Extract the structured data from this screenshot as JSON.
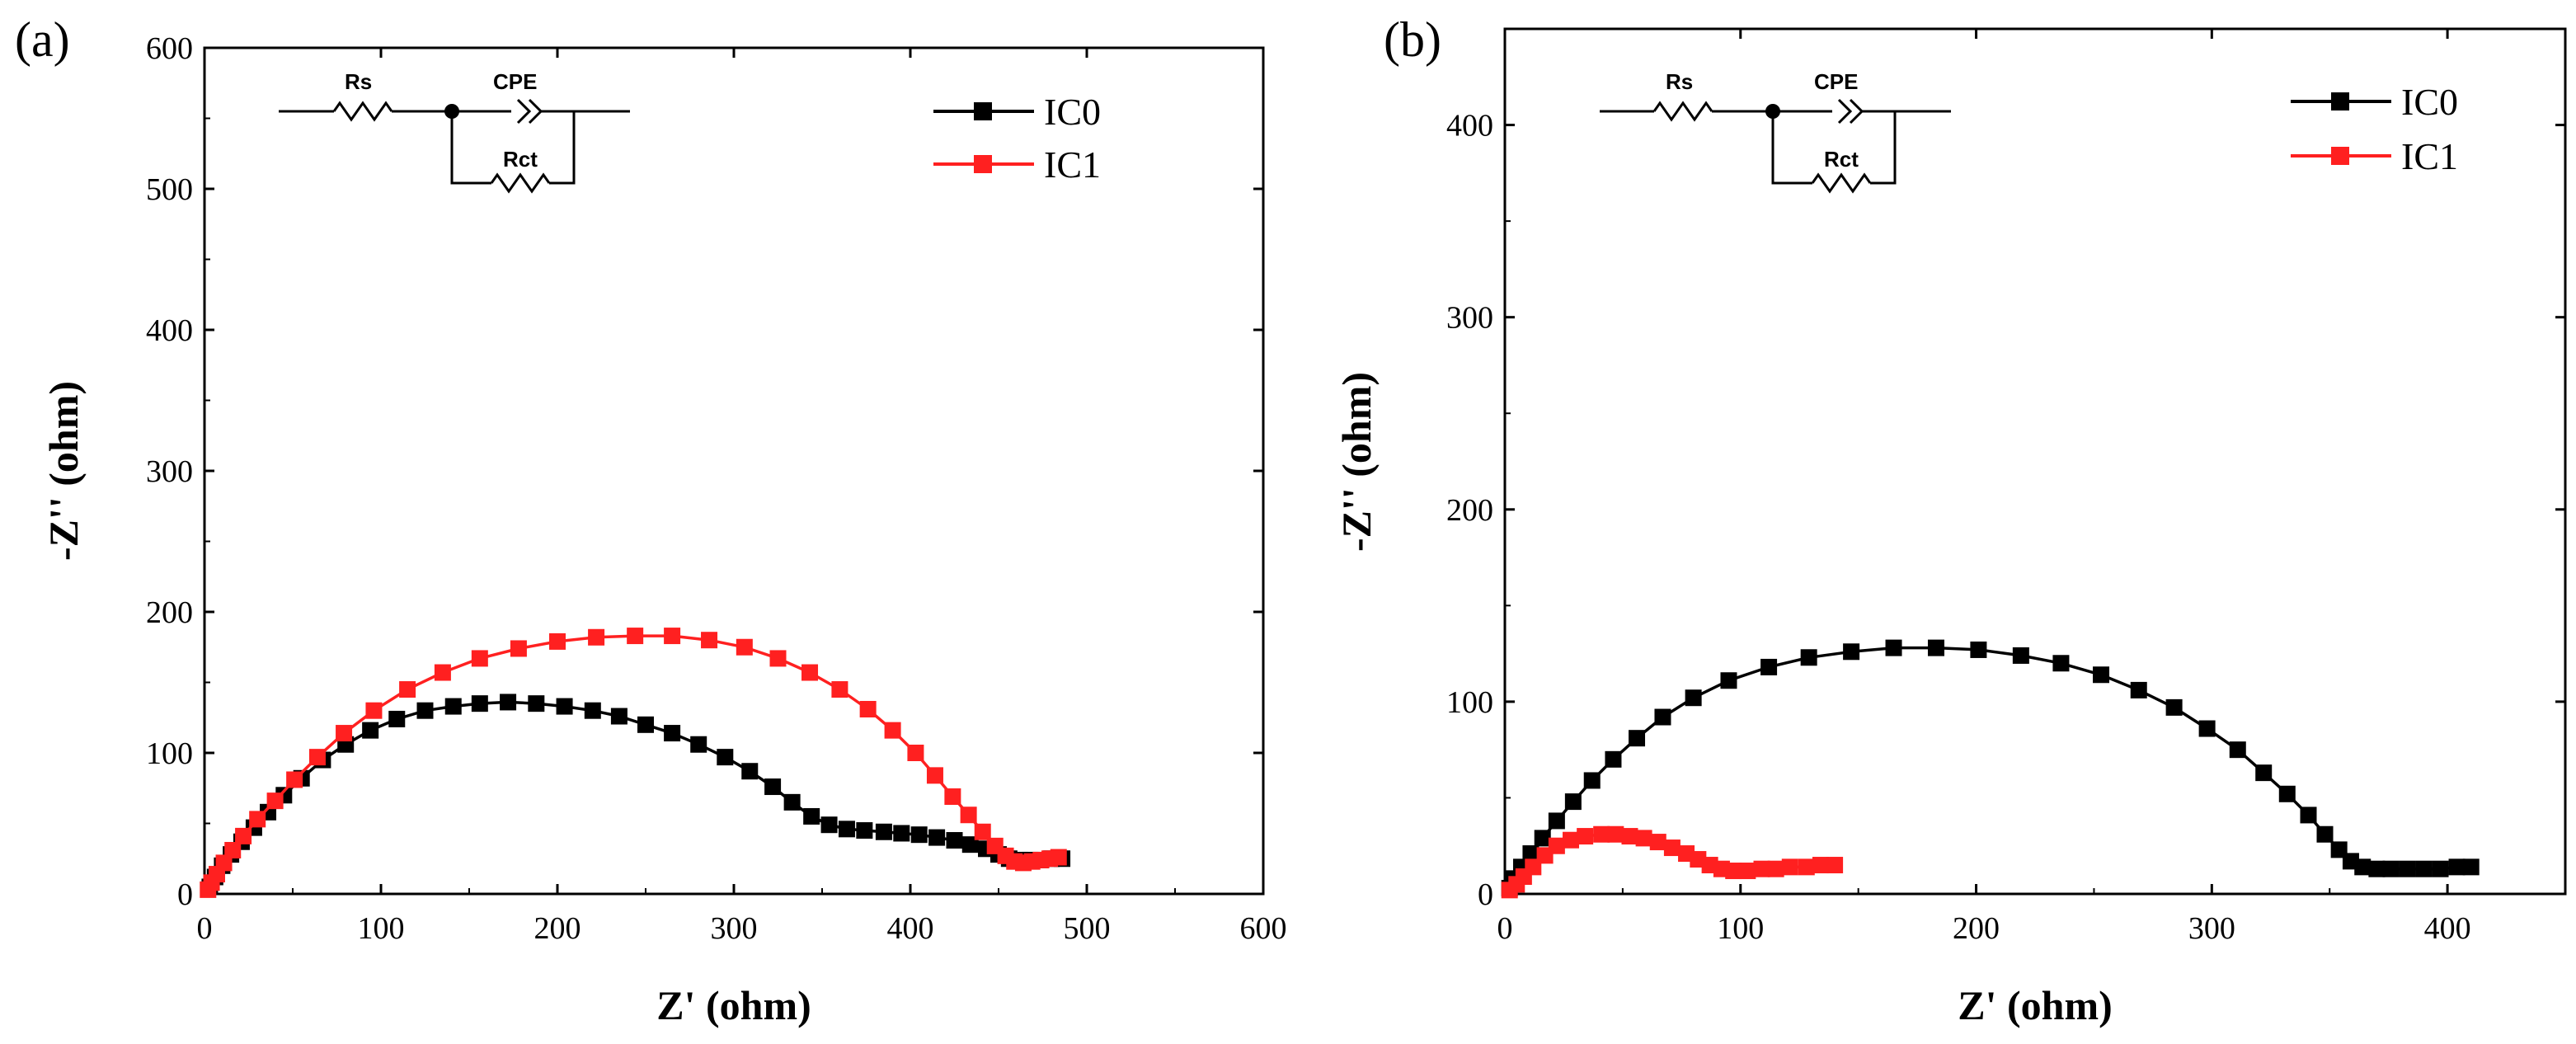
{
  "chart_data": [
    {
      "type": "scatter",
      "panel_label": "(a)",
      "title": "",
      "xlabel": "Z' (ohm)",
      "ylabel": "-Z'' (ohm)",
      "xlim": [
        0,
        600
      ],
      "ylim": [
        0,
        600
      ],
      "xticks": [
        "0",
        "100",
        "200",
        "300",
        "400",
        "500",
        "600"
      ],
      "yticks": [
        "0",
        "100",
        "200",
        "300",
        "400",
        "500",
        "600"
      ],
      "grid": false,
      "legend_position": "top-right",
      "circuit_labels": {
        "rs": "Rs",
        "cpe": "CPE",
        "rct": "Rct"
      },
      "series": [
        {
          "name": "IC0",
          "color": "#000000",
          "points": [
            [
              3,
              5
            ],
            [
              6,
              12
            ],
            [
              10,
              20
            ],
            [
              15,
              28
            ],
            [
              21,
              37
            ],
            [
              28,
              47
            ],
            [
              36,
              58
            ],
            [
              45,
              70
            ],
            [
              55,
              82
            ],
            [
              67,
              95
            ],
            [
              80,
              106
            ],
            [
              94,
              116
            ],
            [
              109,
              124
            ],
            [
              125,
              130
            ],
            [
              141,
              133
            ],
            [
              156,
              135
            ],
            [
              172,
              136
            ],
            [
              188,
              135
            ],
            [
              204,
              133
            ],
            [
              220,
              130
            ],
            [
              235,
              126
            ],
            [
              250,
              120
            ],
            [
              265,
              114
            ],
            [
              280,
              106
            ],
            [
              295,
              97
            ],
            [
              309,
              87
            ],
            [
              322,
              76
            ],
            [
              333,
              65
            ],
            [
              344,
              55
            ],
            [
              354,
              49
            ],
            [
              364,
              46
            ],
            [
              374,
              45
            ],
            [
              385,
              44
            ],
            [
              395,
              43
            ],
            [
              405,
              42
            ],
            [
              415,
              40
            ],
            [
              425,
              38
            ],
            [
              434,
              35
            ],
            [
              443,
              32
            ],
            [
              450,
              28
            ],
            [
              456,
              25
            ],
            [
              462,
              24
            ],
            [
              468,
              24
            ],
            [
              474,
              24
            ],
            [
              480,
              25
            ],
            [
              486,
              25
            ]
          ]
        },
        {
          "name": "IC1",
          "color": "#ff2020",
          "points": [
            [
              2,
              3
            ],
            [
              4,
              8
            ],
            [
              7,
              14
            ],
            [
              11,
              22
            ],
            [
              16,
              31
            ],
            [
              22,
              41
            ],
            [
              30,
              53
            ],
            [
              40,
              66
            ],
            [
              51,
              81
            ],
            [
              64,
              97
            ],
            [
              79,
              114
            ],
            [
              96,
              130
            ],
            [
              115,
              145
            ],
            [
              135,
              157
            ],
            [
              156,
              167
            ],
            [
              178,
              174
            ],
            [
              200,
              179
            ],
            [
              222,
              182
            ],
            [
              244,
              183
            ],
            [
              265,
              183
            ],
            [
              286,
              180
            ],
            [
              306,
              175
            ],
            [
              325,
              167
            ],
            [
              343,
              157
            ],
            [
              360,
              145
            ],
            [
              376,
              131
            ],
            [
              390,
              116
            ],
            [
              403,
              100
            ],
            [
              414,
              84
            ],
            [
              424,
              69
            ],
            [
              433,
              56
            ],
            [
              441,
              44
            ],
            [
              448,
              34
            ],
            [
              454,
              27
            ],
            [
              459,
              23
            ],
            [
              464,
              22
            ],
            [
              469,
              23
            ],
            [
              474,
              24
            ],
            [
              479,
              25
            ],
            [
              484,
              26
            ]
          ]
        }
      ]
    },
    {
      "type": "scatter",
      "panel_label": "(b)",
      "title": "",
      "xlabel": "Z' (ohm)",
      "ylabel": "-Z'' (ohm)",
      "xlim": [
        0,
        450
      ],
      "ylim": [
        0,
        450
      ],
      "xticks": [
        "0",
        "100",
        "200",
        "300",
        "400"
      ],
      "yticks": [
        "0",
        "100",
        "200",
        "300",
        "400"
      ],
      "grid": false,
      "legend_position": "top-right",
      "circuit_labels": {
        "rs": "Rs",
        "cpe": "CPE",
        "rct": "Rct"
      },
      "series": [
        {
          "name": "IC0",
          "color": "#000000",
          "points": [
            [
              2,
              3
            ],
            [
              4,
              8
            ],
            [
              7,
              14
            ],
            [
              11,
              21
            ],
            [
              16,
              29
            ],
            [
              22,
              38
            ],
            [
              29,
              48
            ],
            [
              37,
              59
            ],
            [
              46,
              70
            ],
            [
              56,
              81
            ],
            [
              67,
              92
            ],
            [
              80,
              102
            ],
            [
              95,
              111
            ],
            [
              112,
              118
            ],
            [
              129,
              123
            ],
            [
              147,
              126
            ],
            [
              165,
              128
            ],
            [
              183,
              128
            ],
            [
              201,
              127
            ],
            [
              219,
              124
            ],
            [
              236,
              120
            ],
            [
              253,
              114
            ],
            [
              269,
              106
            ],
            [
              284,
              97
            ],
            [
              298,
              86
            ],
            [
              311,
              75
            ],
            [
              322,
              63
            ],
            [
              332,
              52
            ],
            [
              341,
              41
            ],
            [
              348,
              31
            ],
            [
              354,
              23
            ],
            [
              359,
              17
            ],
            [
              364,
              14
            ],
            [
              370,
              13
            ],
            [
              376,
              13
            ],
            [
              383,
              13
            ],
            [
              390,
              13
            ],
            [
              397,
              13
            ],
            [
              404,
              14
            ],
            [
              410,
              14
            ]
          ]
        },
        {
          "name": "IC1",
          "color": "#ff2020",
          "points": [
            [
              2,
              2
            ],
            [
              5,
              5
            ],
            [
              8,
              9
            ],
            [
              12,
              14
            ],
            [
              17,
              20
            ],
            [
              22,
              25
            ],
            [
              28,
              28
            ],
            [
              34,
              30
            ],
            [
              41,
              31
            ],
            [
              47,
              31
            ],
            [
              53,
              30
            ],
            [
              59,
              29
            ],
            [
              65,
              27
            ],
            [
              71,
              24
            ],
            [
              77,
              21
            ],
            [
              82,
              18
            ],
            [
              87,
              15
            ],
            [
              92,
              13
            ],
            [
              97,
              12
            ],
            [
              103,
              12
            ],
            [
              109,
              13
            ],
            [
              115,
              13
            ],
            [
              121,
              14
            ],
            [
              128,
              14
            ],
            [
              134,
              15
            ],
            [
              140,
              15
            ]
          ]
        }
      ]
    }
  ]
}
